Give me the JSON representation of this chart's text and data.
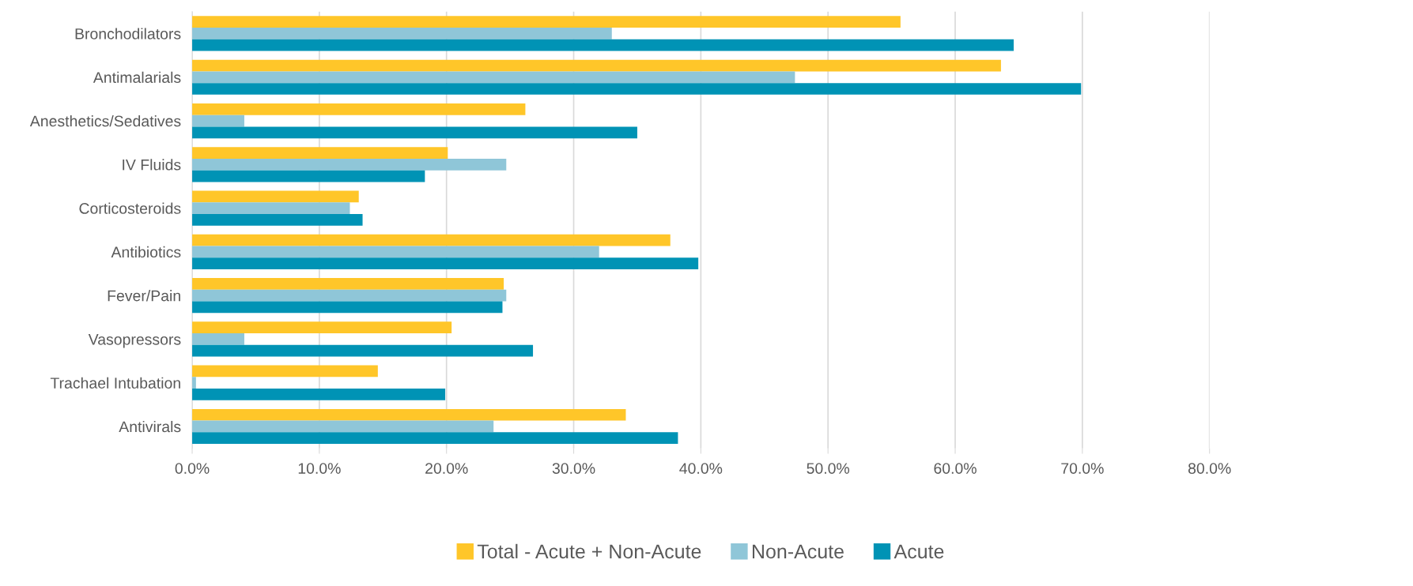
{
  "chart_data": {
    "type": "bar",
    "orientation": "horizontal",
    "categories": [
      "Bronchodilators",
      "Antimalarials",
      "Anesthetics/Sedatives",
      "IV Fluids",
      "Corticosteroids",
      "Antibiotics",
      "Fever/Pain",
      "Vasopressors",
      "Trachael Intubation",
      "Antivirals"
    ],
    "series": [
      {
        "name": "Total - Acute + Non-Acute",
        "color": "#ffc629",
        "values": [
          55.7,
          63.6,
          26.2,
          20.1,
          13.1,
          37.6,
          24.5,
          20.4,
          14.6,
          34.1
        ]
      },
      {
        "name": "Non-Acute",
        "color": "#8fc6d8",
        "values": [
          33.0,
          47.4,
          4.1,
          24.7,
          12.4,
          32.0,
          24.7,
          4.1,
          0.3,
          23.7
        ]
      },
      {
        "name": "Acute",
        "color": "#0093b5",
        "values": [
          64.6,
          69.9,
          35.0,
          18.3,
          13.4,
          39.8,
          24.4,
          26.8,
          19.9,
          38.2
        ]
      }
    ],
    "xlim": [
      0,
      80
    ],
    "xticks": [
      {
        "value": 0,
        "label": "0.0%"
      },
      {
        "value": 10,
        "label": "10.0%"
      },
      {
        "value": 20,
        "label": "20.0%"
      },
      {
        "value": 30,
        "label": "30.0%"
      },
      {
        "value": 40,
        "label": "40.0%"
      },
      {
        "value": 50,
        "label": "50.0%"
      },
      {
        "value": 60,
        "label": "60.0%"
      },
      {
        "value": 70,
        "label": "70.0%"
      },
      {
        "value": 80,
        "label": "80.0%"
      }
    ],
    "grid": "x",
    "legend": "bottom"
  }
}
